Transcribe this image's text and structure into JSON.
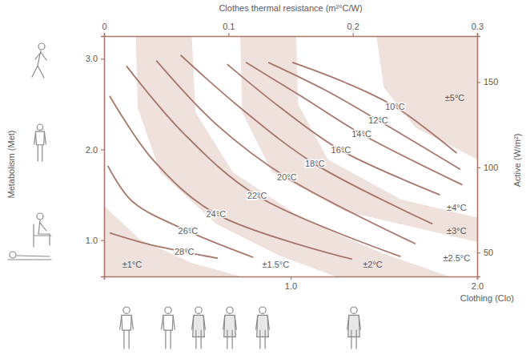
{
  "chart_data": {
    "type": "line",
    "x_label": "Clothing (Clo)",
    "y_label": "Metabolism (Met)",
    "x2_label": "Clothes thermal resistance (m²°C/W)",
    "y2_label": "Active (W/m²)",
    "xlim": [
      0,
      2
    ],
    "xticks": [
      {
        "value": 1,
        "label": "1.0"
      },
      {
        "value": 2,
        "label": "2.0"
      }
    ],
    "ylim": [
      0.6,
      3.25
    ],
    "yticks": [
      {
        "value": 1,
        "label": "1.0"
      },
      {
        "value": 2,
        "label": "2.0"
      },
      {
        "value": 3,
        "label": "3.0"
      }
    ],
    "x2lim": [
      0,
      0.3
    ],
    "x2ticks": [
      0,
      0.1,
      0.2,
      0.3
    ],
    "y2lim": [
      36,
      177
    ],
    "y2ticks": [
      50,
      100,
      150
    ],
    "color": "#a8776b",
    "series": [
      {
        "name": "10°C",
        "x": [
          1.01,
          1.29,
          1.56,
          1.89
        ],
        "values": [
          2.96,
          2.74,
          2.47,
          1.96
        ]
      },
      {
        "name": "12°C",
        "x": [
          0.88,
          1.18,
          1.47,
          1.91
        ],
        "values": [
          2.96,
          2.66,
          2.32,
          1.78
        ]
      },
      {
        "name": "14°C",
        "x": [
          0.76,
          1.07,
          1.38,
          1.92
        ],
        "values": [
          2.96,
          2.57,
          2.17,
          1.61
        ]
      },
      {
        "name": "16°C",
        "x": [
          0.66,
          0.94,
          1.27,
          1.8
        ],
        "values": [
          2.94,
          2.47,
          1.99,
          1.5
        ]
      },
      {
        "name": "18°C",
        "x": [
          0.41,
          0.73,
          1.13,
          1.76
        ],
        "values": [
          3.04,
          2.46,
          1.84,
          1.18
        ]
      },
      {
        "name": "20°C",
        "x": [
          0.28,
          0.6,
          0.98,
          1.67
        ],
        "values": [
          2.98,
          2.28,
          1.69,
          0.96
        ]
      },
      {
        "name": "22°C",
        "x": [
          0.12,
          0.43,
          0.82,
          1.59
        ],
        "values": [
          2.92,
          2.17,
          1.49,
          0.82
        ]
      },
      {
        "name": "24°C",
        "x": [
          0.03,
          0.26,
          0.6,
          1.33
        ],
        "values": [
          2.59,
          1.89,
          1.29,
          0.79
        ]
      },
      {
        "name": "26°C",
        "x": [
          0.02,
          0.15,
          0.45,
          0.8
        ],
        "values": [
          1.82,
          1.43,
          1.1,
          0.81
        ]
      },
      {
        "name": "28°C",
        "x": [
          0.03,
          0.21,
          0.43,
          0.61
        ],
        "values": [
          1.08,
          0.97,
          0.87,
          0.8
        ]
      }
    ],
    "regions": {
      "color": "#efe1dc",
      "items": [
        {
          "x": [
            0,
            0,
            0.19,
            0.47,
            0.73
          ],
          "y": [
            0.6,
            1.38,
            1.01,
            0.75,
            0.6
          ]
        },
        {
          "x": [
            0.17,
            0.18,
            0.3,
            0.6,
            0.94,
            1.24,
            1.85,
            1.5,
            1.07,
            0.69,
            0.49,
            0.47
          ],
          "y": [
            3.25,
            2.46,
            1.75,
            1.18,
            0.83,
            0.6,
            0.6,
            0.85,
            1.23,
            1.75,
            2.41,
            3.25
          ]
        },
        {
          "x": [
            0.73,
            0.74,
            0.9,
            1.29,
            2.0,
            2.0,
            1.59,
            1.2,
            1.04,
            1.03
          ],
          "y": [
            3.25,
            2.41,
            1.75,
            1.32,
            0.98,
            1.25,
            1.45,
            1.89,
            2.5,
            3.25
          ]
        },
        {
          "x": [
            1.46,
            1.5,
            1.67,
            2.0,
            2.0
          ],
          "y": [
            3.25,
            2.68,
            2.24,
            1.89,
            3.25
          ]
        }
      ]
    },
    "zone_labels": [
      {
        "text": "±1°C",
        "x": 0.15,
        "y": 0.73
      },
      {
        "text": "±1.5°C",
        "x": 0.92,
        "y": 0.73
      },
      {
        "text": "±2°C",
        "x": 1.44,
        "y": 0.73
      },
      {
        "text": "±2.5°C",
        "x": 1.89,
        "y": 0.8
      },
      {
        "text": "±3°C",
        "x": 1.89,
        "y": 1.1
      },
      {
        "text": "±4°C",
        "x": 1.89,
        "y": 1.36
      },
      {
        "text": "±5°C",
        "x": 1.88,
        "y": 2.57
      }
    ]
  }
}
